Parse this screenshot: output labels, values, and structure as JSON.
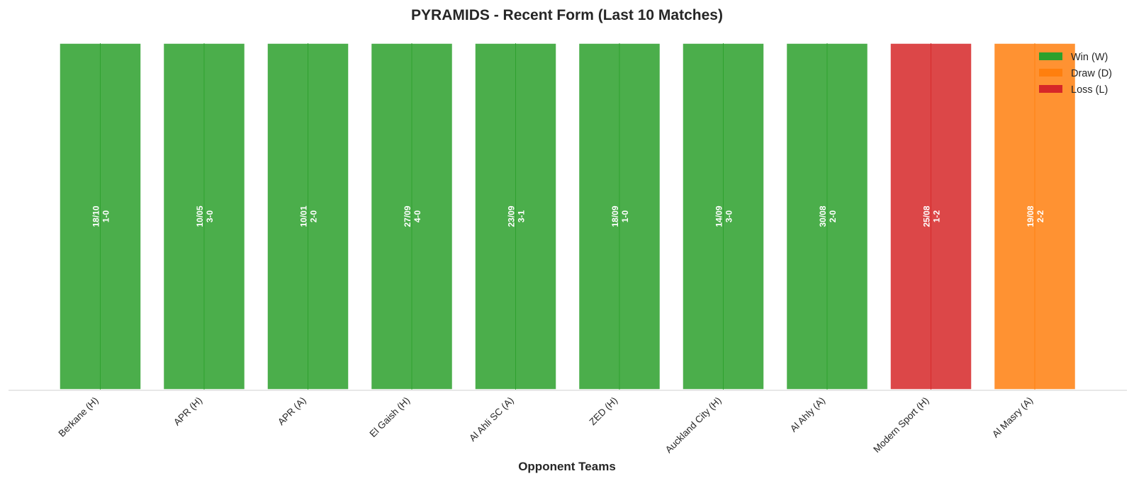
{
  "chart_data": {
    "type": "bar",
    "title": "PYRAMIDS - Recent Form (Last 10 Matches)",
    "xlabel": "Opponent Teams",
    "ylabel": "",
    "categories": [
      "Berkane (H)",
      "APR (H)",
      "APR (A)",
      "El Gaish (H)",
      "Al Ahli SC (A)",
      "ZED (H)",
      "Auckland City (H)",
      "Al Ahly (A)",
      "Modern Sport (H)",
      "Al Masry (A)"
    ],
    "values": [
      1,
      1,
      1,
      1,
      1,
      1,
      1,
      1,
      1,
      1
    ],
    "results": [
      "W",
      "W",
      "W",
      "W",
      "W",
      "W",
      "W",
      "W",
      "L",
      "D"
    ],
    "dates": [
      "18/10",
      "10/05",
      "10/01",
      "27/09",
      "23/09",
      "18/09",
      "14/09",
      "30/08",
      "25/08",
      "19/08"
    ],
    "scores": [
      "1-0",
      "3-0",
      "2-0",
      "4-0",
      "3-1",
      "1-0",
      "3-0",
      "2-0",
      "1-2",
      "2-2"
    ],
    "ylim": [
      0,
      1
    ],
    "grid": false,
    "legend": {
      "placement": "top-right",
      "entries": [
        {
          "key": "W",
          "label": "Win (W)",
          "color": "#2ca02c"
        },
        {
          "key": "D",
          "label": "Draw (D)",
          "color": "#ff7f0e"
        },
        {
          "key": "L",
          "label": "Loss (L)",
          "color": "#d62728"
        }
      ]
    },
    "colors": {
      "W": "#2ca02c",
      "D": "#ff7f0e",
      "L": "#d62728"
    }
  }
}
